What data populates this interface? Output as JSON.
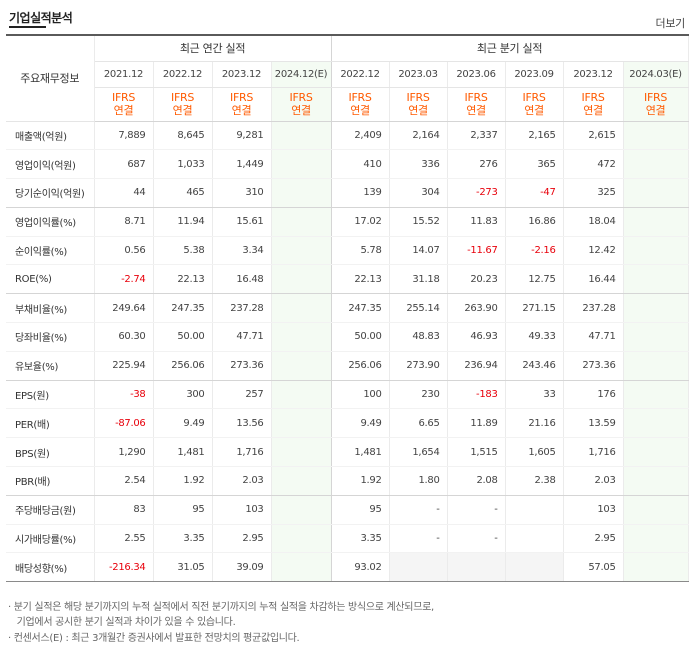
{
  "section": {
    "title": "기업실적분석",
    "more": "더보기"
  },
  "table": {
    "row_header_label": "주요재무정보",
    "group_annual": "최근 연간 실적",
    "group_quarter": "최근 분기 실적",
    "annual_periods": [
      "2021.12",
      "2022.12",
      "2023.12",
      "2024.12(E)"
    ],
    "quarter_periods": [
      "2022.12",
      "2023.03",
      "2023.06",
      "2023.09",
      "2023.12",
      "2024.03(E)"
    ],
    "basis": "IFRS\n연결",
    "rows": [
      {
        "label": "매출액(억원)",
        "annual": [
          "7,889",
          "8,645",
          "9,281",
          ""
        ],
        "quarter": [
          "2,409",
          "2,164",
          "2,337",
          "2,165",
          "2,615",
          ""
        ]
      },
      {
        "label": "영업이익(억원)",
        "annual": [
          "687",
          "1,033",
          "1,449",
          ""
        ],
        "quarter": [
          "410",
          "336",
          "276",
          "365",
          "472",
          ""
        ]
      },
      {
        "label": "당기순이익(억원)",
        "annual": [
          "44",
          "465",
          "310",
          ""
        ],
        "quarter": [
          "139",
          "304",
          "-273",
          "-47",
          "325",
          ""
        ]
      },
      {
        "label": "영업이익률(%)",
        "annual": [
          "8.71",
          "11.94",
          "15.61",
          ""
        ],
        "quarter": [
          "17.02",
          "15.52",
          "11.83",
          "16.86",
          "18.04",
          ""
        ]
      },
      {
        "label": "순이익률(%)",
        "annual": [
          "0.56",
          "5.38",
          "3.34",
          ""
        ],
        "quarter": [
          "5.78",
          "14.07",
          "-11.67",
          "-2.16",
          "12.42",
          ""
        ]
      },
      {
        "label": "ROE(%)",
        "annual": [
          "-2.74",
          "22.13",
          "16.48",
          ""
        ],
        "quarter": [
          "22.13",
          "31.18",
          "20.23",
          "12.75",
          "16.44",
          ""
        ]
      },
      {
        "label": "부채비율(%)",
        "annual": [
          "249.64",
          "247.35",
          "237.28",
          ""
        ],
        "quarter": [
          "247.35",
          "255.14",
          "263.90",
          "271.15",
          "237.28",
          ""
        ]
      },
      {
        "label": "당좌비율(%)",
        "annual": [
          "60.30",
          "50.00",
          "47.71",
          ""
        ],
        "quarter": [
          "50.00",
          "48.83",
          "46.93",
          "49.33",
          "47.71",
          ""
        ]
      },
      {
        "label": "유보율(%)",
        "annual": [
          "225.94",
          "256.06",
          "273.36",
          ""
        ],
        "quarter": [
          "256.06",
          "273.90",
          "236.94",
          "243.46",
          "273.36",
          ""
        ]
      },
      {
        "label": "EPS(원)",
        "annual": [
          "-38",
          "300",
          "257",
          ""
        ],
        "quarter": [
          "100",
          "230",
          "-183",
          "33",
          "176",
          ""
        ]
      },
      {
        "label": "PER(배)",
        "annual": [
          "-87.06",
          "9.49",
          "13.56",
          ""
        ],
        "quarter": [
          "9.49",
          "6.65",
          "11.89",
          "21.16",
          "13.59",
          ""
        ]
      },
      {
        "label": "BPS(원)",
        "annual": [
          "1,290",
          "1,481",
          "1,716",
          ""
        ],
        "quarter": [
          "1,481",
          "1,654",
          "1,515",
          "1,605",
          "1,716",
          ""
        ]
      },
      {
        "label": "PBR(배)",
        "annual": [
          "2.54",
          "1.92",
          "2.03",
          ""
        ],
        "quarter": [
          "1.92",
          "1.80",
          "2.08",
          "2.38",
          "2.03",
          ""
        ]
      },
      {
        "label": "주당배당금(원)",
        "annual": [
          "83",
          "95",
          "103",
          ""
        ],
        "quarter": [
          "95",
          "-",
          "-",
          "",
          "103",
          ""
        ]
      },
      {
        "label": "시가배당률(%)",
        "annual": [
          "2.55",
          "3.35",
          "2.95",
          ""
        ],
        "quarter": [
          "3.35",
          "-",
          "-",
          "",
          "2.95",
          ""
        ]
      },
      {
        "label": "배당성향(%)",
        "annual": [
          "-216.34",
          "31.05",
          "39.09",
          ""
        ],
        "quarter": [
          "93.02",
          "",
          "",
          "",
          "57.05",
          ""
        ]
      }
    ]
  },
  "footnotes": [
    "· 분기 실적은 해당 분기까지의 누적 실적에서 직전 분기까지의 누적 실적을 차감하는 방식으로 계산되므로,",
    "   기업에서 공시한 분기 실적과 차이가 있을 수 있습니다.",
    "· 컨센서스(E) : 최근 3개월간 증권사에서 발표한 전망치의 평균값입니다."
  ],
  "colors": {
    "negative": "#e8000b",
    "ifrs": "#ff5a00",
    "estimate_bg": "#f4fbf3"
  }
}
